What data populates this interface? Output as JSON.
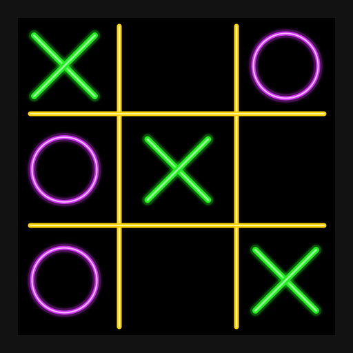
{
  "board": {
    "cells": [
      [
        "X",
        "",
        "O"
      ],
      [
        "O",
        "X",
        ""
      ],
      [
        "O",
        "",
        "X"
      ]
    ]
  },
  "colors": {
    "grid_line": "#ffd400",
    "grid_core": "#fff6a8",
    "x_mark": "#22ee22",
    "x_core": "#aaffaa",
    "o_mark": "#cc33ee",
    "o_core": "#ffd0ff",
    "board_background": "#000000",
    "frame_background": "#121212"
  },
  "icons": {
    "x": "x-mark-icon",
    "o": "o-mark-icon"
  }
}
